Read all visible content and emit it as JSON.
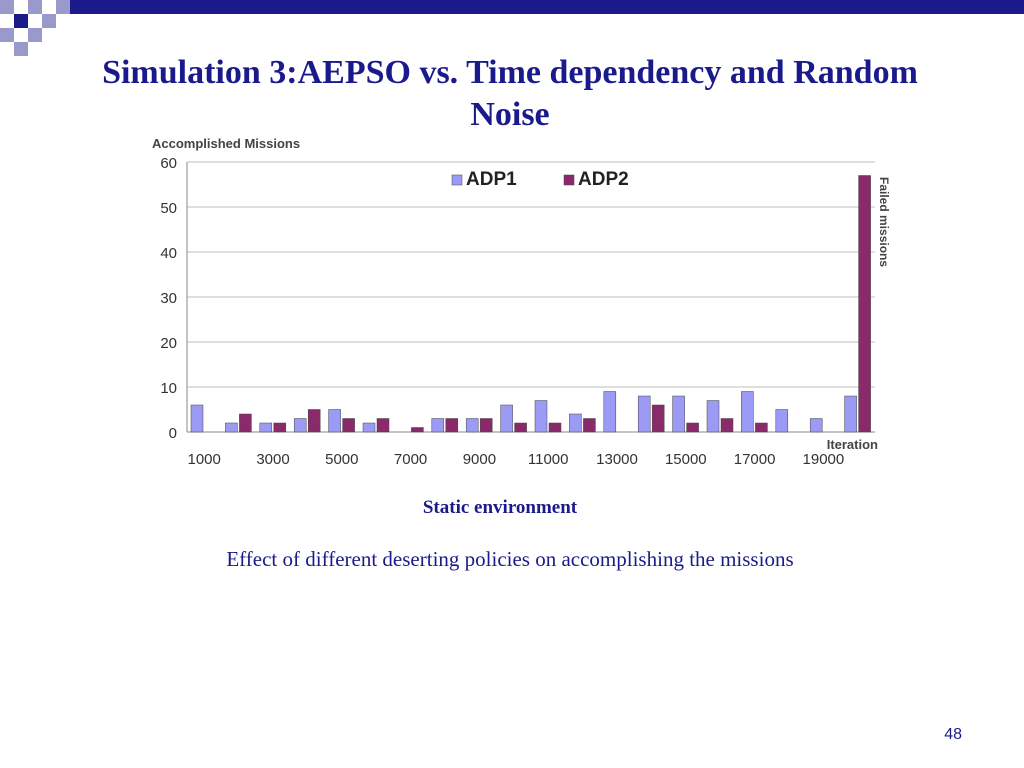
{
  "slide": {
    "title": "Simulation 3:AEPSO vs. Time dependency and Random Noise",
    "subcaption": "Static environment",
    "caption": "Effect of different deserting policies on accomplishing the missions",
    "page_number": "48"
  },
  "colors": {
    "title": "#1a1a8c",
    "adp1": "#9b9bf5",
    "adp2": "#8b2a6b",
    "decor_dark": "#1a1a8c",
    "decor_light": "#9999cc"
  },
  "chart_data": {
    "type": "bar",
    "title": "",
    "ylabel": "Accomplished Missions",
    "xlabel": "Iteration",
    "right_label": "Failed missions",
    "ylim": [
      0,
      60
    ],
    "yticks": [
      "0",
      "10",
      "20",
      "30",
      "40",
      "50",
      "60"
    ],
    "xtick_labels": [
      "1000",
      "3000",
      "5000",
      "7000",
      "9000",
      "11000",
      "13000",
      "15000",
      "17000",
      "19000"
    ],
    "categories": [
      "1000",
      "2000",
      "3000",
      "4000",
      "5000",
      "6000",
      "7000",
      "8000",
      "9000",
      "10000",
      "11000",
      "12000",
      "13000",
      "14000",
      "15000",
      "16000",
      "17000",
      "18000",
      "19000",
      "20000"
    ],
    "series": [
      {
        "name": "ADP1",
        "color": "#9b9bf5",
        "values": [
          6,
          2,
          2,
          3,
          5,
          2,
          0,
          3,
          3,
          6,
          7,
          4,
          9,
          8,
          8,
          7,
          9,
          5,
          3,
          8
        ]
      },
      {
        "name": "ADP2",
        "color": "#8b2a6b",
        "values": [
          0,
          4,
          2,
          5,
          3,
          3,
          1,
          3,
          3,
          2,
          2,
          3,
          0,
          6,
          2,
          3,
          2,
          0,
          0,
          57
        ]
      }
    ],
    "grid": true,
    "legend": "top-center"
  }
}
